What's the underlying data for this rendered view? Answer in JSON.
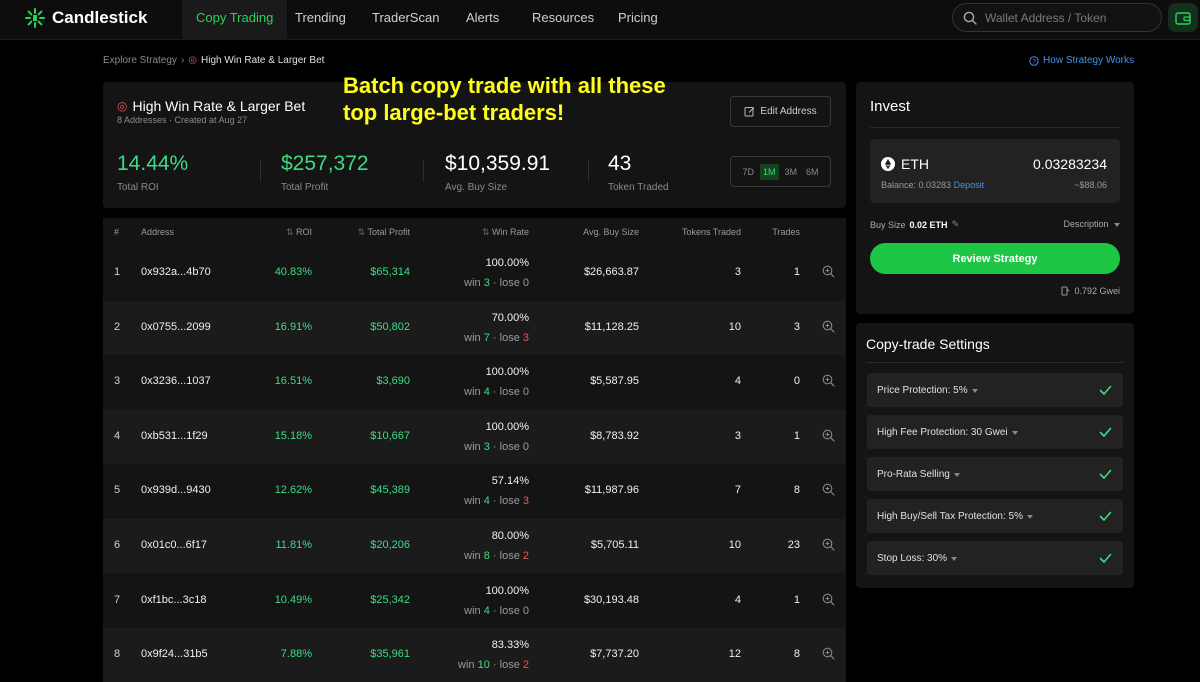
{
  "brand": {
    "name": "Candlestick",
    "accent": "#29d459"
  },
  "nav": {
    "tabs": [
      {
        "label": "Copy Trading",
        "active": true
      },
      {
        "label": "Trending"
      },
      {
        "label": "TraderScan"
      },
      {
        "label": "Alerts"
      },
      {
        "label": "Resources"
      },
      {
        "label": "Pricing"
      }
    ],
    "search_placeholder": "Wallet Address / Token"
  },
  "breadcrumb": {
    "root": "Explore Strategy",
    "current": "High Win Rate & Larger Bet"
  },
  "how_link": "How Strategy Works",
  "overlay_text": [
    "Batch copy trade with all these",
    "top large-bet traders!"
  ],
  "strategy": {
    "title": "High Win Rate & Larger Bet",
    "subtitle": "8 Addresses · Created at Aug 27",
    "edit_label": "Edit Address",
    "stats": [
      {
        "value": "14.44%",
        "label": "Total ROI",
        "green": true
      },
      {
        "value": "$257,372",
        "label": "Total Profit",
        "green": true
      },
      {
        "value": "$10,359.91",
        "label": "Avg. Buy Size",
        "green": false
      },
      {
        "value": "43",
        "label": "Token Traded",
        "green": false
      }
    ],
    "periods": [
      "7D",
      "1M",
      "3M",
      "6M"
    ],
    "active_period": "1M"
  },
  "table": {
    "headers": {
      "num": "#",
      "address": "Address",
      "roi": "ROI",
      "profit": "Total Profit",
      "winrate": "Win Rate",
      "avg": "Avg. Buy Size",
      "tokens": "Tokens Traded",
      "trades": "Trades"
    },
    "rows": [
      {
        "num": "1",
        "address": "0x932a...4b70",
        "roi": "40.83%",
        "profit": "$65,314",
        "win_rate": "100.00%",
        "wins": "3",
        "losses": "0",
        "avg_buy": "$26,663.87",
        "tokens": "3",
        "trades": "1"
      },
      {
        "num": "2",
        "address": "0x0755...2099",
        "roi": "16.91%",
        "profit": "$50,802",
        "win_rate": "70.00%",
        "wins": "7",
        "losses": "3",
        "avg_buy": "$11,128.25",
        "tokens": "10",
        "trades": "3"
      },
      {
        "num": "3",
        "address": "0x3236...1037",
        "roi": "16.51%",
        "profit": "$3,690",
        "win_rate": "100.00%",
        "wins": "4",
        "losses": "0",
        "avg_buy": "$5,587.95",
        "tokens": "4",
        "trades": "0"
      },
      {
        "num": "4",
        "address": "0xb531...1f29",
        "roi": "15.18%",
        "profit": "$10,667",
        "win_rate": "100.00%",
        "wins": "3",
        "losses": "0",
        "avg_buy": "$8,783.92",
        "tokens": "3",
        "trades": "1"
      },
      {
        "num": "5",
        "address": "0x939d...9430",
        "roi": "12.62%",
        "profit": "$45,389",
        "win_rate": "57.14%",
        "wins": "4",
        "losses": "3",
        "avg_buy": "$11,987.96",
        "tokens": "7",
        "trades": "8"
      },
      {
        "num": "6",
        "address": "0x01c0...6f17",
        "roi": "11.81%",
        "profit": "$20,206",
        "win_rate": "80.00%",
        "wins": "8",
        "losses": "2",
        "avg_buy": "$5,705.11",
        "tokens": "10",
        "trades": "23"
      },
      {
        "num": "7",
        "address": "0xf1bc...3c18",
        "roi": "10.49%",
        "profit": "$25,342",
        "win_rate": "100.00%",
        "wins": "4",
        "losses": "0",
        "avg_buy": "$30,193.48",
        "tokens": "4",
        "trades": "1"
      },
      {
        "num": "8",
        "address": "0x9f24...31b5",
        "roi": "7.88%",
        "profit": "$35,961",
        "win_rate": "83.33%",
        "wins": "10",
        "losses": "2",
        "avg_buy": "$7,737.20",
        "tokens": "12",
        "trades": "8"
      }
    ]
  },
  "invest": {
    "title": "Invest",
    "token": "ETH",
    "amount": "0.03283234",
    "balance": "Balance: 0.03283",
    "deposit": "Deposit",
    "usd": "~$88.06",
    "buy_size_label": "Buy Size",
    "buy_size_value": "0.02 ETH",
    "description_label": "Description",
    "review_label": "Review Strategy",
    "gwei": "0.792 Gwei"
  },
  "settings": {
    "title": "Copy-trade Settings",
    "items": [
      {
        "label": "Price Protection: 5%",
        "checked": true
      },
      {
        "label": "High Fee Protection: 30 Gwei",
        "checked": true
      },
      {
        "label": "Pro-Rata Selling",
        "checked": true
      },
      {
        "label": "High Buy/Sell Tax Protection: 5%",
        "checked": true
      },
      {
        "label": "Stop Loss: 30%",
        "checked": true
      }
    ]
  }
}
